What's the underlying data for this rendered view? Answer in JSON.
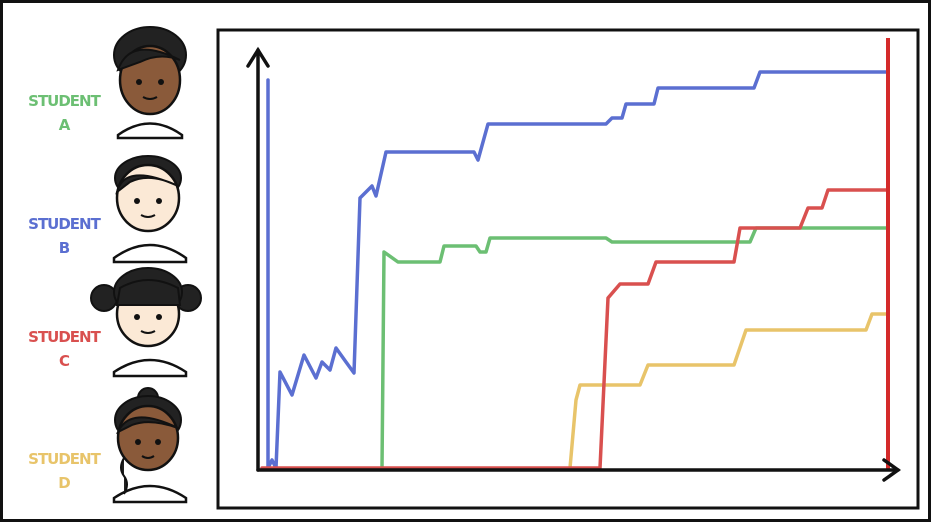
{
  "students": [
    {
      "line1": "STUDENT",
      "line2": "A"
    },
    {
      "line1": "STUDENT",
      "line2": "B"
    },
    {
      "line1": "STUDENT",
      "line2": "C"
    },
    {
      "line1": "STUDENT",
      "line2": "D"
    }
  ]
}
